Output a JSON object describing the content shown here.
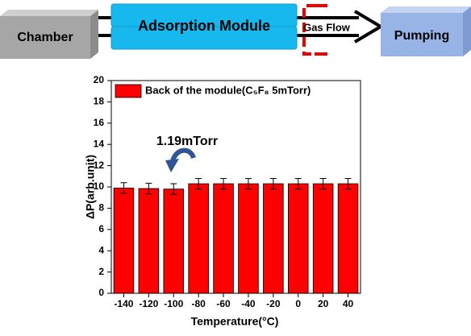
{
  "diagram": {
    "nodes": [
      {
        "label": "Chamber"
      },
      {
        "label": "Adsorption Module"
      },
      {
        "label": "Pumping"
      }
    ],
    "flow_label": "Gas Flow"
  },
  "chart_data": {
    "type": "bar",
    "annotation": "1.19mTorr",
    "x_label": "Temperature(°C)",
    "y_label": "ΔP(arb.unit)",
    "categories": [
      "-140",
      "-120",
      "-100",
      "-80",
      "-60",
      "-40",
      "-20",
      "0",
      "20",
      "40"
    ],
    "series": [
      {
        "name": "Back of the module(C₅F₈ 5mTorr)",
        "color": "#ff0000",
        "values": [
          9.9,
          9.85,
          9.8,
          10.3,
          10.3,
          10.3,
          10.3,
          10.3,
          10.3,
          10.3
        ],
        "errors": [
          0.5,
          0.5,
          0.5,
          0.5,
          0.5,
          0.5,
          0.5,
          0.5,
          0.5,
          0.5
        ]
      }
    ],
    "ylim": [
      0,
      20
    ],
    "yticks": [
      0,
      2,
      4,
      6,
      8,
      10,
      12,
      14,
      16,
      18,
      20
    ],
    "legend": "upper left"
  }
}
